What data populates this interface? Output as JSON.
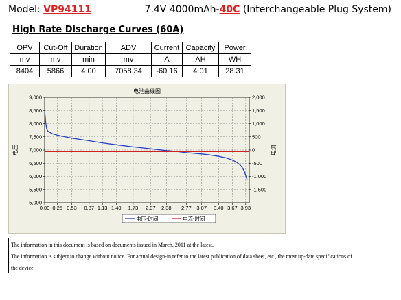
{
  "header": {
    "model_prefix": "Model: ",
    "model_code": "VP94111",
    "spec_prefix": "7.4V 4000mAh-",
    "spec_rate": "40C",
    "spec_suffix": " (Interchangeable Plug System)"
  },
  "section_title": "High Rate Discharge Curves (60A)",
  "table": {
    "headers": [
      "OPV",
      "Cut-Off",
      "Duration",
      "ADV",
      "Current",
      "Capacity",
      "Power"
    ],
    "units": [
      "mv",
      "mv",
      "min",
      "mv",
      "A",
      "AH",
      "WH"
    ],
    "values": [
      "8404",
      "5866",
      "4.00",
      "7058.34",
      "-60.16",
      "4.01",
      "28.31"
    ]
  },
  "chart_data": {
    "type": "line",
    "title": "电池曲线图",
    "xlabel": "",
    "ylabel": "电压",
    "y2label": "电流",
    "x_ticks": [
      "0.00",
      "0.25",
      "0.53",
      "0.87",
      "1.13",
      "1.40",
      "1.73",
      "2.07",
      "2.38",
      "2.77",
      "3.07",
      "3.40",
      "3.67",
      "3.93"
    ],
    "xlim": [
      0,
      4.0
    ],
    "y_ticks": [
      "5,000",
      "5,500",
      "6,000",
      "6,500",
      "7,000",
      "7,500",
      "8,000",
      "8,500",
      "9,000"
    ],
    "ylim": [
      5000,
      9000
    ],
    "y2_ticks": [
      "-1,500",
      "-1,000",
      "-500",
      "0",
      "500",
      "1,000",
      "1,500",
      "2,000"
    ],
    "y2lim": [
      -2000,
      2000
    ],
    "grid": true,
    "legend_position": "bottom",
    "series": [
      {
        "name": "电压-时间",
        "axis": "left",
        "color": "#1f3fc8",
        "x": [
          0.0,
          0.01,
          0.02,
          0.04,
          0.06,
          0.1,
          0.15,
          0.25,
          0.4,
          0.53,
          0.7,
          0.87,
          1.0,
          1.13,
          1.4,
          1.73,
          2.07,
          2.38,
          2.6,
          2.77,
          3.07,
          3.2,
          3.4,
          3.55,
          3.67,
          3.75,
          3.82,
          3.87,
          3.91,
          3.94,
          3.96
        ],
        "y": [
          8404,
          8300,
          8050,
          7800,
          7720,
          7670,
          7620,
          7560,
          7500,
          7450,
          7400,
          7350,
          7310,
          7270,
          7200,
          7120,
          7050,
          6980,
          6940,
          6900,
          6850,
          6820,
          6760,
          6700,
          6620,
          6540,
          6440,
          6320,
          6160,
          5980,
          5866
        ]
      },
      {
        "name": "电流-时间",
        "axis": "right",
        "color": "#d02020",
        "x": [
          0.0,
          4.0
        ],
        "y": [
          -60.16,
          -60.16
        ]
      }
    ]
  },
  "colors": {
    "chart_bg": "#f1f0e4",
    "grid": "#8a8a8a",
    "voltage": "#1f3fc8",
    "current": "#d02020",
    "red_text": "#e02020"
  },
  "notice": {
    "line1": "The information in this document is based on documents issued in March, 2011 at the latest.",
    "line2": "The information is subject to change without notice. For actual design-in refer to the latest publication of data sheet, etc., the most up-date specifications of",
    "line3": "the device."
  }
}
